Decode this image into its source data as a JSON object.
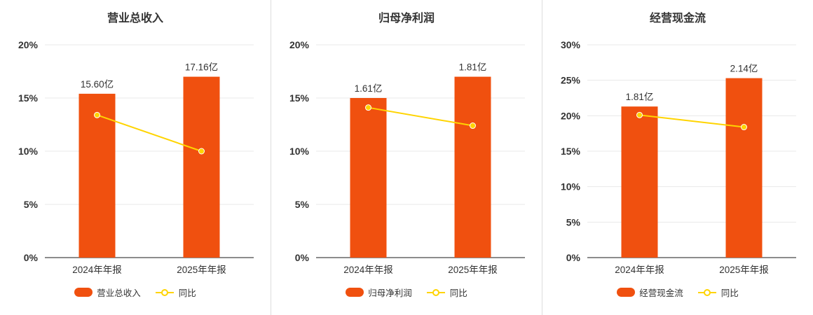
{
  "page": {
    "background": "#ffffff"
  },
  "colors": {
    "bar": "#f0500f",
    "line": "#ffd400",
    "grid": "#e8e8e8",
    "axis": "#666666",
    "text": "#333333",
    "divider": "#dddddd"
  },
  "chart_data": [
    {
      "type": "bar",
      "title": "营业总收入",
      "categories": [
        "2024年年报",
        "2025年年报"
      ],
      "bar": {
        "name": "营业总收入",
        "unit": "亿",
        "values_yi": [
          15.6,
          17.16
        ],
        "labels": [
          "15.60亿",
          "17.16亿"
        ],
        "plotted_pct": [
          15.4,
          17.0
        ]
      },
      "line": {
        "name": "同比",
        "values_pct": [
          13.4,
          10.0
        ]
      },
      "ylim": [
        0,
        20
      ],
      "yticks_pct": [
        0,
        5,
        10,
        15,
        20
      ],
      "grid": true,
      "legend_position": "bottom"
    },
    {
      "type": "bar",
      "title": "归母净利润",
      "categories": [
        "2024年年报",
        "2025年年报"
      ],
      "bar": {
        "name": "归母净利润",
        "unit": "亿",
        "values_yi": [
          1.61,
          1.81
        ],
        "labels": [
          "1.61亿",
          "1.81亿"
        ],
        "plotted_pct": [
          15.0,
          17.0
        ]
      },
      "line": {
        "name": "同比",
        "values_pct": [
          14.1,
          12.4
        ]
      },
      "ylim": [
        0,
        20
      ],
      "yticks_pct": [
        0,
        5,
        10,
        15,
        20
      ],
      "grid": true,
      "legend_position": "bottom"
    },
    {
      "type": "bar",
      "title": "经营现金流",
      "categories": [
        "2024年年报",
        "2025年年报"
      ],
      "bar": {
        "name": "经营现金流",
        "unit": "亿",
        "values_yi": [
          1.81,
          2.14
        ],
        "labels": [
          "1.81亿",
          "2.14亿"
        ],
        "plotted_pct": [
          21.3,
          25.3
        ]
      },
      "line": {
        "name": "同比",
        "values_pct": [
          20.1,
          18.4
        ]
      },
      "ylim": [
        0,
        30
      ],
      "yticks_pct": [
        0,
        5,
        10,
        15,
        20,
        25,
        30
      ],
      "grid": true,
      "legend_position": "bottom"
    }
  ]
}
